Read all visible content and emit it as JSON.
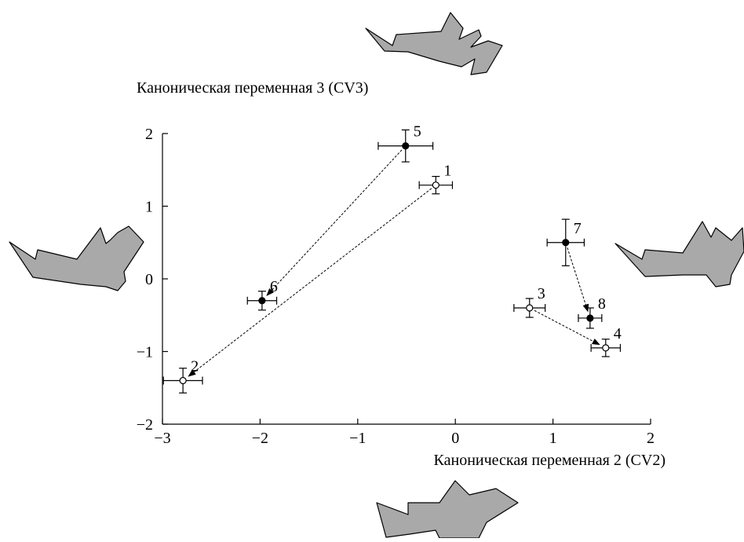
{
  "chart_data": {
    "type": "scatter",
    "xlabel": "Каноническая переменная 2 (CV2)",
    "ylabel": "Каноническая переменная 3 (CV3)",
    "xlim": [
      -3,
      2
    ],
    "ylim": [
      -2,
      2
    ],
    "xticks": [
      {
        "value": -3,
        "label": "−3"
      },
      {
        "value": -2,
        "label": "−2"
      },
      {
        "value": -1,
        "label": "−1"
      },
      0,
      1,
      2
    ],
    "yticks": [
      {
        "value": -2,
        "label": "−2"
      },
      {
        "value": -1,
        "label": "−1"
      },
      0,
      1,
      2
    ],
    "points": [
      {
        "label": "1",
        "x": -0.2,
        "y": 1.29,
        "xerr": 0.17,
        "yerr": 0.12,
        "filled": false
      },
      {
        "label": "2",
        "x": -2.79,
        "y": -1.4,
        "xerr": 0.2,
        "yerr": 0.17,
        "filled": false
      },
      {
        "label": "3",
        "x": 0.76,
        "y": -0.4,
        "xerr": 0.16,
        "yerr": 0.13,
        "filled": false
      },
      {
        "label": "4",
        "x": 1.54,
        "y": -0.95,
        "xerr": 0.15,
        "yerr": 0.12,
        "filled": false
      },
      {
        "label": "5",
        "x": -0.51,
        "y": 1.83,
        "xerr": 0.28,
        "yerr": 0.22,
        "filled": true
      },
      {
        "label": "6",
        "x": -1.98,
        "y": -0.3,
        "xerr": 0.15,
        "yerr": 0.13,
        "filled": true
      },
      {
        "label": "7",
        "x": 1.13,
        "y": 0.5,
        "xerr": 0.19,
        "yerr": 0.32,
        "filled": true
      },
      {
        "label": "8",
        "x": 1.38,
        "y": -0.54,
        "xerr": 0.12,
        "yerr": 0.14,
        "filled": true
      }
    ],
    "arrows": [
      [
        "5",
        "6"
      ],
      [
        "1",
        "2"
      ],
      [
        "7",
        "8"
      ],
      [
        "3",
        "4"
      ]
    ]
  }
}
